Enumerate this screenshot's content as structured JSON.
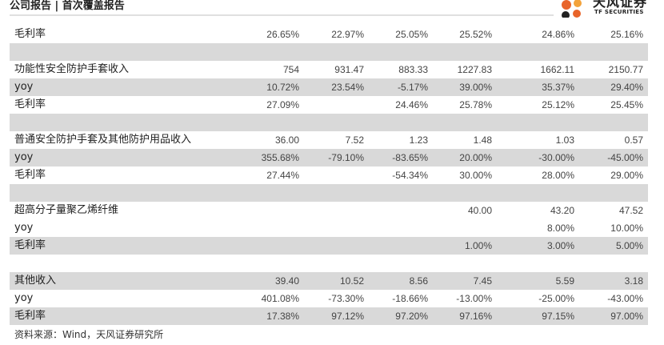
{
  "header": {
    "title": "公司报告 | 首次覆盖报告",
    "logo_cn": "天风证券",
    "logo_en": "TF SECURITIES"
  },
  "table": {
    "rows": [
      {
        "kind": "data",
        "shaded": false,
        "label": "毛利率",
        "values": [
          "26.65%",
          "22.97%",
          "25.05%",
          "25.52%",
          "24.86%",
          "25.16%"
        ]
      },
      {
        "kind": "blank"
      },
      {
        "kind": "data",
        "shaded": false,
        "label": "功能性安全防护手套收入",
        "values": [
          "754",
          "931.47",
          "883.33",
          "1227.83",
          "1662.11",
          "2150.77"
        ]
      },
      {
        "kind": "data",
        "shaded": true,
        "label": "yoy",
        "values": [
          "10.72%",
          "23.54%",
          "-5.17%",
          "39.00%",
          "35.37%",
          "29.40%"
        ]
      },
      {
        "kind": "data",
        "shaded": false,
        "label": "毛利率",
        "values": [
          "27.09%",
          "",
          "24.46%",
          "25.78%",
          "25.12%",
          "25.45%"
        ]
      },
      {
        "kind": "blank"
      },
      {
        "kind": "data",
        "shaded": false,
        "label": "普通安全防护手套及其他防护用品收入",
        "values": [
          "36.00",
          "7.52",
          "1.23",
          "1.48",
          "1.03",
          "0.57"
        ]
      },
      {
        "kind": "data",
        "shaded": true,
        "label": "yoy",
        "values": [
          "355.68%",
          "-79.10%",
          "-83.65%",
          "20.00%",
          "-30.00%",
          "-45.00%"
        ]
      },
      {
        "kind": "data",
        "shaded": false,
        "label": "毛利率",
        "values": [
          "27.44%",
          "",
          "-54.34%",
          "30.00%",
          "28.00%",
          "29.00%"
        ]
      },
      {
        "kind": "blank"
      },
      {
        "kind": "data",
        "shaded": false,
        "label": "超高分子量聚乙烯纤维",
        "values": [
          "",
          "",
          "",
          "40.00",
          "43.20",
          "47.52"
        ]
      },
      {
        "kind": "data",
        "shaded": false,
        "label": "yoy",
        "values": [
          "",
          "",
          "",
          "",
          "8.00%",
          "10.00%"
        ]
      },
      {
        "kind": "data",
        "shaded": true,
        "label": "毛利率",
        "values": [
          "",
          "",
          "",
          "1.00%",
          "3.00%",
          "5.00%"
        ]
      },
      {
        "kind": "white"
      },
      {
        "kind": "data",
        "shaded": true,
        "label": "其他收入",
        "values": [
          "39.40",
          "10.52",
          "8.56",
          "7.45",
          "5.59",
          "3.18"
        ]
      },
      {
        "kind": "data",
        "shaded": false,
        "label": "yoy",
        "values": [
          "401.08%",
          "-73.30%",
          "-18.66%",
          "-13.00%",
          "-25.00%",
          "-43.00%"
        ]
      },
      {
        "kind": "data",
        "shaded": true,
        "label": "毛利率",
        "values": [
          "17.38%",
          "97.12%",
          "97.20%",
          "97.16%",
          "97.15%",
          "97.00%"
        ]
      }
    ]
  },
  "source": "资料来源：Wind，天风证券研究所"
}
